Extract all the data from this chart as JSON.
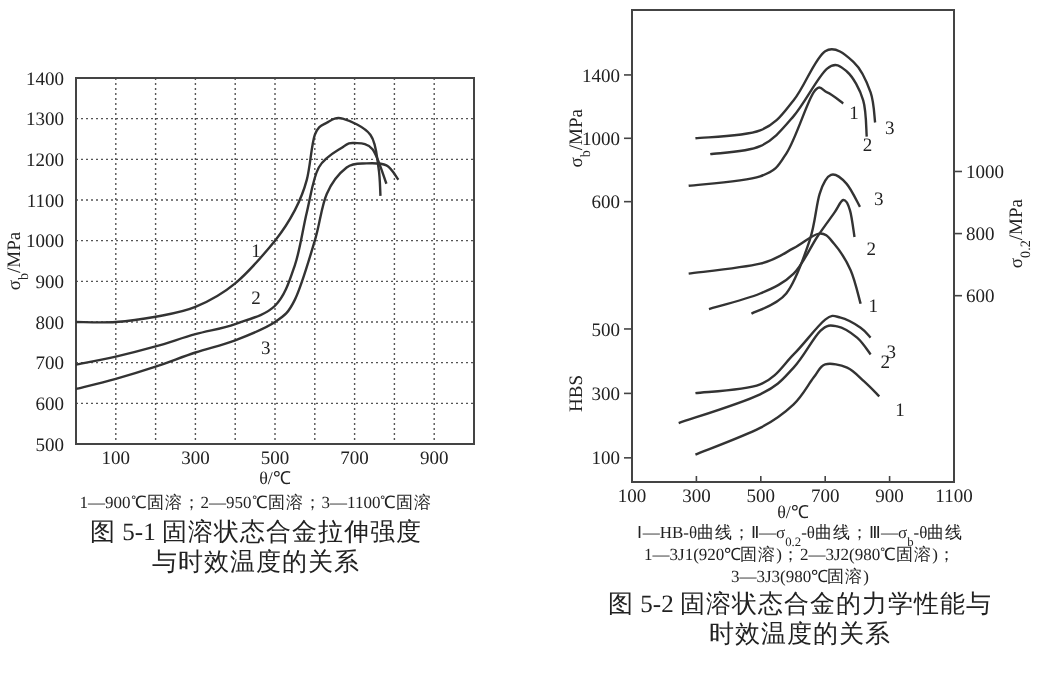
{
  "chart_data": [
    {
      "type": "line",
      "title": "图 5-1 固溶状态合金拉伸强度与时效温度的关系",
      "xlabel": "θ/℃",
      "ylabel": "σ$_{b}$/MPa",
      "xlim": [
        0,
        1000
      ],
      "ylim": [
        500,
        1400
      ],
      "xticks": [
        100,
        {
          "value": 200,
          "label": null
        },
        300,
        {
          "value": 400,
          "label": null
        },
        500,
        {
          "value": 600,
          "label": null
        },
        700,
        {
          "value": 800,
          "label": null
        },
        900
      ],
      "yticks": [
        500,
        600,
        700,
        800,
        900,
        1000,
        1100,
        1200,
        1300,
        1400
      ],
      "grid": true,
      "annotations": [
        "1—900℃固溶；2—950℃固溶；3—1100℃固溶"
      ],
      "series": [
        {
          "name": "1",
          "color": "#333333",
          "x": [
            0,
            100,
            200,
            300,
            400,
            500,
            550,
            580,
            600,
            630,
            670,
            740,
            760,
            765
          ],
          "values": [
            800,
            800,
            813,
            837,
            895,
            1000,
            1075,
            1150,
            1260,
            1290,
            1300,
            1260,
            1180,
            1110
          ]
        },
        {
          "name": "2",
          "color": "#333333",
          "x": [
            0,
            100,
            200,
            300,
            400,
            500,
            550,
            580,
            610,
            670,
            700,
            745,
            780
          ],
          "values": [
            695,
            715,
            740,
            770,
            795,
            840,
            940,
            1070,
            1180,
            1230,
            1240,
            1225,
            1140
          ]
        },
        {
          "name": "3",
          "color": "#333333",
          "x": [
            0,
            100,
            200,
            300,
            400,
            500,
            550,
            600,
            630,
            680,
            730,
            780,
            810
          ],
          "values": [
            635,
            660,
            690,
            725,
            755,
            800,
            855,
            1000,
            1115,
            1180,
            1190,
            1185,
            1150
          ]
        }
      ]
    },
    {
      "type": "line",
      "title": "图 5-2 固溶状态合金的力学性能与时效温度的关系",
      "xlabel": "θ/℃",
      "ylabel": "σ$_{b}$/MPa",
      "y2label": "σ$_{0.2}$/MPa",
      "y3label": "HBS",
      "xlim": [
        100,
        1100
      ],
      "xticks": [
        100,
        300,
        500,
        700,
        900,
        1100
      ],
      "ylim": [
        -1170,
        1810
      ],
      "yticks": [
        600,
        1000,
        1400
      ],
      "y2lim": [
        0,
        1520
      ],
      "y2ticks": [
        600,
        800,
        1000
      ],
      "y3lim": [
        25,
        1490
      ],
      "y3ticks": [
        100,
        300,
        500
      ],
      "annotations": [
        "Ⅰ—HB-θ曲线；Ⅱ—σ$_{0.2}$-θ曲线；Ⅲ—σ$_{b}$-θ曲线",
        "1—3J1(920℃固溶)；2—3J2(980℃固溶)；",
        "3—3J3(980℃固溶)"
      ],
      "series": [
        {
          "name": "1",
          "color": "#333333",
          "x": [
            276,
            498,
            581,
            664,
            706,
            756
          ],
          "values": [
            700,
            760,
            910,
            1290,
            1290,
            1220
          ]
        },
        {
          "name": "2",
          "color": "#333333",
          "x": [
            343,
            498,
            602,
            706,
            768,
            818,
            829
          ],
          "values": [
            900,
            950,
            1140,
            1440,
            1420,
            1240,
            1010
          ]
        },
        {
          "name": "3",
          "color": "#333333",
          "x": [
            297,
            498,
            602,
            700,
            789,
            841,
            855
          ],
          "values": [
            1000,
            1050,
            1240,
            1550,
            1480,
            1290,
            1100
          ]
        },
        {
          "name": "1",
          "axis": "y2",
          "color": "#333333",
          "x": [
            276,
            498,
            602,
            681,
            727,
            779,
            810
          ],
          "values": [
            671,
            703,
            753,
            800,
            768,
            682,
            574
          ]
        },
        {
          "name": "2",
          "axis": "y2",
          "color": "#333333",
          "x": [
            339,
            498,
            602,
            675,
            727,
            756,
            777,
            791
          ],
          "values": [
            557,
            607,
            671,
            789,
            865,
            908,
            875,
            789
          ]
        },
        {
          "name": "3",
          "axis": "y2",
          "color": "#333333",
          "x": [
            471,
            579,
            652,
            683,
            718,
            766,
            808
          ],
          "values": [
            542,
            607,
            779,
            929,
            989,
            961,
            886
          ]
        },
        {
          "name": "1",
          "axis": "y3",
          "color": "#333333",
          "x": [
            297,
            498,
            602,
            664,
            700,
            768,
            820,
            868
          ],
          "values": [
            110,
            193,
            266,
            349,
            390,
            380,
            338,
            291
          ]
        },
        {
          "name": "2",
          "axis": "y3",
          "color": "#333333",
          "x": [
            245,
            498,
            602,
            685,
            737,
            799,
            841
          ],
          "values": [
            208,
            297,
            380,
            494,
            508,
            473,
            421
          ]
        },
        {
          "name": "3",
          "axis": "y3",
          "color": "#333333",
          "x": [
            297,
            498,
            602,
            700,
            748,
            810,
            841
          ],
          "values": [
            301,
            328,
            421,
            529,
            535,
            504,
            473
          ]
        }
      ]
    }
  ]
}
